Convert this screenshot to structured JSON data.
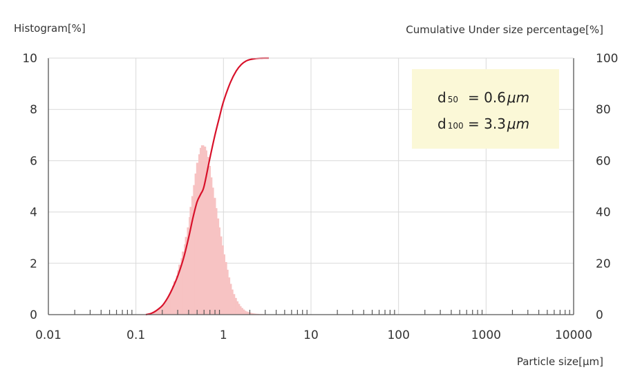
{
  "chart_data": {
    "type": "bar",
    "title": "",
    "y_left_label": "Histogram[%]",
    "y_right_label": "Cumulative Under size percentage[%]",
    "xlabel": "Particle size[μm]",
    "x_scale": "log",
    "xlim": [
      0.01,
      10000
    ],
    "ylim_left": [
      0,
      10
    ],
    "ylim_right": [
      0,
      100
    ],
    "x_ticks": [
      "0.01",
      "0.1",
      "1",
      "10",
      "100",
      "1000",
      "10000"
    ],
    "y_left_ticks": [
      "0",
      "2",
      "4",
      "6",
      "8",
      "10"
    ],
    "y_right_ticks": [
      "0",
      "20",
      "40",
      "60",
      "80",
      "100"
    ],
    "grid": true,
    "colors": {
      "histogram": "#f7c3c3",
      "cumulative": "#d8112a",
      "note_bg": "#fbf8d7"
    },
    "series": [
      {
        "type": "bar",
        "axis": "left",
        "x": [
          0.14,
          0.15,
          0.16,
          0.17,
          0.18,
          0.19,
          0.2,
          0.21,
          0.22,
          0.23,
          0.24,
          0.25,
          0.26,
          0.27,
          0.28,
          0.3,
          0.31,
          0.32,
          0.34,
          0.35,
          0.37,
          0.38,
          0.4,
          0.42,
          0.43,
          0.45,
          0.47,
          0.49,
          0.51,
          0.54,
          0.56,
          0.58,
          0.61,
          0.63,
          0.66,
          0.69,
          0.72,
          0.75,
          0.79,
          0.82,
          0.86,
          0.89,
          0.93,
          0.97,
          1.01,
          1.06,
          1.1,
          1.15,
          1.2,
          1.25,
          1.31,
          1.37,
          1.43,
          1.49,
          1.55,
          1.62,
          1.69,
          1.76,
          1.84,
          1.92,
          2.01,
          2.09,
          2.18,
          2.28,
          2.38,
          2.48,
          2.59,
          2.7,
          2.82,
          2.94,
          3.07,
          3.2
        ],
        "values": [
          0.03,
          0.06,
          0.09,
          0.13,
          0.17,
          0.23,
          0.29,
          0.37,
          0.46,
          0.57,
          0.68,
          0.81,
          0.96,
          1.12,
          1.3,
          1.52,
          1.73,
          1.95,
          2.2,
          2.46,
          2.74,
          3.03,
          3.4,
          3.8,
          4.2,
          4.62,
          5.05,
          5.5,
          5.92,
          6.25,
          6.5,
          6.6,
          6.55,
          6.4,
          6.15,
          5.8,
          5.35,
          4.95,
          4.55,
          4.15,
          3.75,
          3.4,
          3.05,
          2.7,
          2.35,
          2.05,
          1.75,
          1.45,
          1.2,
          0.98,
          0.8,
          0.65,
          0.52,
          0.42,
          0.33,
          0.26,
          0.2,
          0.15,
          0.12,
          0.1,
          0.08,
          0.06,
          0.05,
          0.04,
          0.03,
          0.03,
          0.02,
          0.02,
          0.02,
          0.01,
          0.01,
          0.01
        ]
      },
      {
        "type": "line",
        "axis": "right",
        "x": [
          0.13,
          0.15,
          0.17,
          0.2,
          0.23,
          0.26,
          0.3,
          0.35,
          0.4,
          0.45,
          0.5,
          0.55,
          0.6,
          0.7,
          0.8,
          0.9,
          1.0,
          1.2,
          1.4,
          1.6,
          1.8,
          2.0,
          2.3,
          2.6,
          3.0,
          3.3
        ],
        "values": [
          0,
          0.5,
          1.5,
          3.5,
          6.5,
          10,
          15,
          22,
          30,
          38,
          44,
          47,
          50,
          61,
          70,
          77,
          83,
          90.5,
          95,
          97.5,
          98.8,
          99.4,
          99.8,
          99.95,
          100,
          100
        ]
      }
    ],
    "annotations": [
      {
        "base": "d",
        "sub": "50",
        "eq": "= 0.6",
        "unit": "μm"
      },
      {
        "base": "d",
        "sub": "100",
        "eq": "= 3.3",
        "unit": "μm"
      }
    ]
  }
}
